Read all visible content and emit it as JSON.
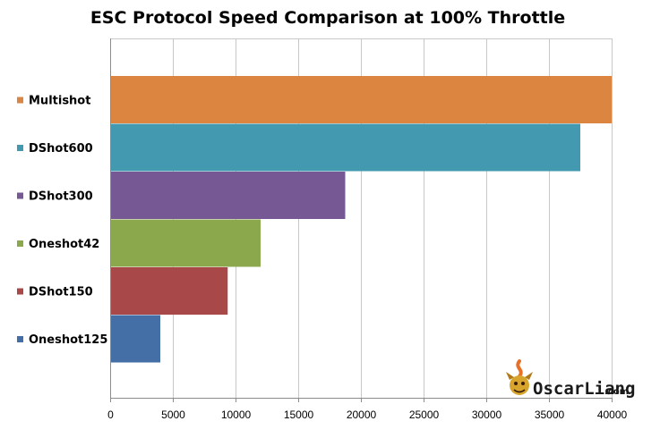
{
  "chart_data": {
    "type": "bar",
    "orientation": "horizontal",
    "title": "ESC Protocol Speed Comparison at 100% Throttle",
    "xlabel": "",
    "ylabel": "",
    "xlim": [
      0,
      40000
    ],
    "xticks": [
      0,
      5000,
      10000,
      15000,
      20000,
      25000,
      30000,
      35000,
      40000
    ],
    "grid": true,
    "legend_position": "left",
    "categories": [
      "Multishot",
      "DShot600",
      "DShot300",
      "Oneshot42",
      "DShot150",
      "Oneshot125"
    ],
    "values": [
      40000,
      37500,
      18750,
      12000,
      9375,
      4000
    ],
    "colors": [
      "#db8541",
      "#4299b0",
      "#755894",
      "#8ca84c",
      "#a84848",
      "#436ea6"
    ]
  },
  "watermark": {
    "text": "OscarLiang",
    "suffix": ".com",
    "icon": "dragon-logo-icon"
  }
}
